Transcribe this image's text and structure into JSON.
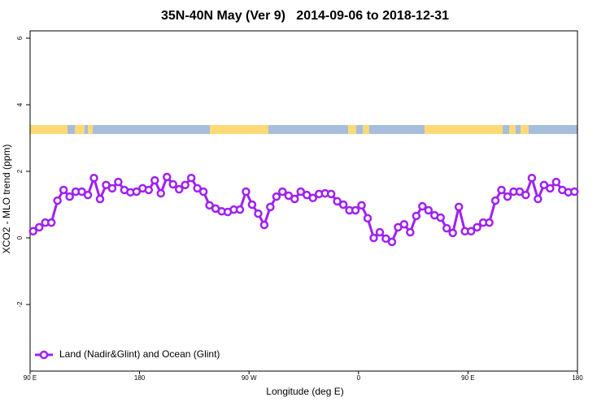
{
  "chart_data": {
    "type": "line",
    "title": "35N-40N May (Ver 9)   2014-09-06 to 2018-12-31",
    "x_label": "Longitude (deg E)",
    "y_label": "XCO2 - MLO trend (ppm)",
    "xlim": [
      90,
      540
    ],
    "ylim": [
      -4,
      6.22
    ],
    "xticks": [
      {
        "value": 90,
        "label": "90 E"
      },
      180,
      {
        "value": 270,
        "label": "90 W"
      },
      {
        "value": 360,
        "label": "0"
      },
      {
        "value": 450,
        "label": "90 E"
      },
      {
        "value": 540,
        "label": "180"
      }
    ],
    "yticks": [
      -2,
      0,
      2,
      4,
      6
    ],
    "legend": "bottom-left",
    "x": [
      92.5,
      97.5,
      102.5,
      107.5,
      112.5,
      117.5,
      122.5,
      127.5,
      132.5,
      137.5,
      142.5,
      147.5,
      152.5,
      157.5,
      162.5,
      167.5,
      172.5,
      177.5,
      182.5,
      187.5,
      192.5,
      197.5,
      202.5,
      207.5,
      212.5,
      217.5,
      222.5,
      227.5,
      232.5,
      237.5,
      242.5,
      247.5,
      252.5,
      257.5,
      262.5,
      267.5,
      272.5,
      277.5,
      282.5,
      287.5,
      292.5,
      297.5,
      302.5,
      307.5,
      312.5,
      317.5,
      322.5,
      327.5,
      332.5,
      337.5,
      342.5,
      347.5,
      352.5,
      357.5,
      362.5,
      367.5,
      372.5,
      377.5,
      382.5,
      387.5,
      392.5,
      397.5,
      402.5,
      407.5,
      412.5,
      417.5,
      422.5,
      427.5,
      432.5,
      437.5,
      442.5,
      447.5,
      452.5,
      457.5,
      462.5,
      467.5,
      472.5,
      477.5,
      482.5,
      487.5,
      492.5,
      497.5,
      502.5,
      507.5,
      512.5,
      517.5,
      522.5,
      527.5,
      532.5,
      537.5
    ],
    "series": [
      {
        "name": "Land (Nadir&Glint) and Ocean (Glint)",
        "color": "#a020f0",
        "values": [
          0.2,
          0.32,
          0.46,
          0.46,
          1.12,
          1.44,
          1.24,
          1.39,
          1.39,
          1.29,
          1.8,
          1.17,
          1.59,
          1.49,
          1.68,
          1.44,
          1.37,
          1.39,
          1.49,
          1.44,
          1.73,
          1.34,
          1.83,
          1.61,
          1.46,
          1.59,
          1.8,
          1.49,
          1.39,
          0.98,
          0.88,
          0.8,
          0.78,
          0.85,
          0.85,
          1.39,
          1.0,
          0.73,
          0.39,
          0.93,
          1.24,
          1.39,
          1.27,
          1.17,
          1.39,
          1.29,
          1.2,
          1.32,
          1.34,
          1.32,
          1.1,
          1.0,
          0.83,
          0.83,
          0.98,
          0.59,
          0.0,
          0.17,
          -0.02,
          -0.12,
          0.32,
          0.41,
          0.17,
          0.66,
          0.95,
          0.83,
          0.68,
          0.61,
          0.29,
          0.15,
          0.93,
          0.2,
          0.2,
          0.32,
          0.46,
          0.46,
          1.12,
          1.44,
          1.24,
          1.39,
          1.39,
          1.29,
          1.8,
          1.17,
          1.59,
          1.49,
          1.68,
          1.44,
          1.37,
          1.39
        ]
      }
    ]
  }
}
